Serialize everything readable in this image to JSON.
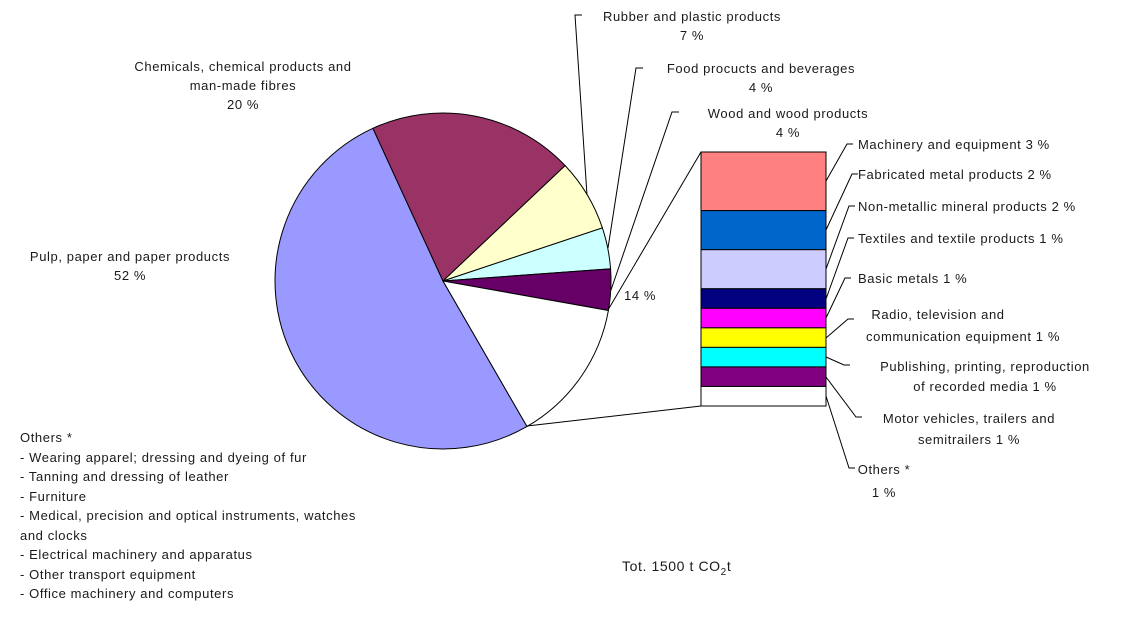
{
  "chart_data": {
    "type": "pie",
    "main_pie": {
      "slices": [
        {
          "name": "Pulp, paper and paper products",
          "value": 52,
          "value_label": "52 %",
          "color": "#9999ff"
        },
        {
          "name": "Chemicals, chemical products and man-made fibres",
          "value": 20,
          "value_label": "20 %",
          "color": "#993366"
        },
        {
          "name": "Rubber and plastic products",
          "value": 7,
          "value_label": "7 %",
          "color": "#ffffcc"
        },
        {
          "name": "Food procucts and beverages",
          "value": 4,
          "value_label": "4 %",
          "color": "#ccffff"
        },
        {
          "name": "Wood and wood products",
          "value": 4,
          "value_label": "4 %",
          "color": "#660066"
        },
        {
          "name": "",
          "value": 14,
          "value_label": "14 %",
          "color": "#ffffff"
        }
      ]
    },
    "breakdown_bar": {
      "segments": [
        {
          "name": "Machinery and equipment",
          "value": 3,
          "value_label": "3 %",
          "color": "#ff8080"
        },
        {
          "name": "Fabricated metal products",
          "value": 2,
          "value_label": "2 %",
          "color": "#0066cc"
        },
        {
          "name": "Non-metallic mineral products",
          "value": 2,
          "value_label": "2 %",
          "color": "#ccccff"
        },
        {
          "name": "Textiles and textile products",
          "value": 1,
          "value_label": "1 %",
          "color": "#000080"
        },
        {
          "name": "Basic metals",
          "value": 1,
          "value_label": "1 %",
          "color": "#ff00ff"
        },
        {
          "name": "Radio, television and communication equipment",
          "value": 1,
          "value_label": "1 %",
          "color": "#ffff00"
        },
        {
          "name": "Publishing, printing, reproduction of recorded media",
          "value": 1,
          "value_label": "1 %",
          "color": "#00ffff"
        },
        {
          "name": "Motor vehicles, trailers and semitrailers",
          "value": 1,
          "value_label": "1 %",
          "color": "#800080"
        },
        {
          "name": "Others *",
          "value": 1,
          "value_label": "1 %",
          "color": "#ffffff"
        }
      ]
    }
  },
  "labels": {
    "pulp": [
      "Pulp, paper and paper products",
      "52 %"
    ],
    "chemicals": [
      "Chemicals, chemical products and",
      "man-made fibres",
      "20 %"
    ],
    "rubber": [
      "Rubber and plastic products",
      "7 %"
    ],
    "food": [
      "Food procucts and beverages",
      "4 %"
    ],
    "wood": [
      "Wood and wood products",
      "4 %"
    ],
    "other_slice": "14 %",
    "machinery": "Machinery and equipment 3 %",
    "fabricated": "Fabricated metal products 2 %",
    "nonmetallic": "Non-metallic mineral products 2 %",
    "textiles": "Textiles and textile products 1 %",
    "basic": "Basic metals 1 %",
    "radio": [
      "Radio, television and",
      "communication equipment 1 %"
    ],
    "publishing": [
      "Publishing, printing, reproduction",
      "of recorded media 1 %"
    ],
    "motor": [
      "Motor vehicles, trailers and",
      "semitrailers 1 %"
    ],
    "others_bar": [
      "Others *",
      "1 %"
    ]
  },
  "others_note": {
    "title": "Others *",
    "items": [
      "- Wearing apparel; dressing and dyeing of fur",
      "- Tanning and dressing of leather",
      "- Furniture",
      "- Medical, precision and optical instruments, watches",
      "and clocks",
      "- Electrical machinery and apparatus",
      "- Other transport equipment",
      "- Office machinery and computers"
    ]
  },
  "total": {
    "prefix": "Tot. 1500 t CO",
    "sub": "2",
    "suffix": "t"
  }
}
